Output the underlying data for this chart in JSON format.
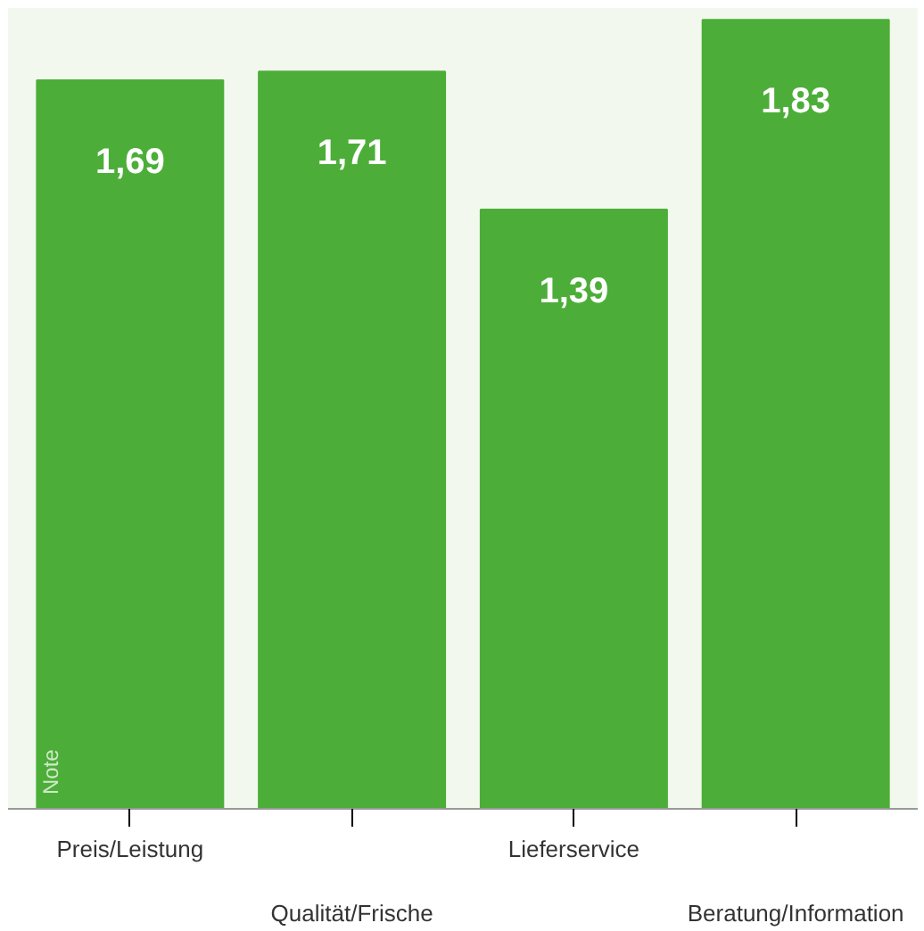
{
  "chart_data": {
    "type": "bar",
    "ylabel": "Note",
    "categories": [
      "Preis/Leistung",
      "Qualität/Frische",
      "Lieferservice",
      "Beratung/Information"
    ],
    "values": [
      1.69,
      1.71,
      1.39,
      1.83
    ],
    "color": "#4cae38",
    "data_labels": true,
    "value_labels": [
      "1,69",
      "1,71",
      "1,39",
      "1,83"
    ]
  }
}
